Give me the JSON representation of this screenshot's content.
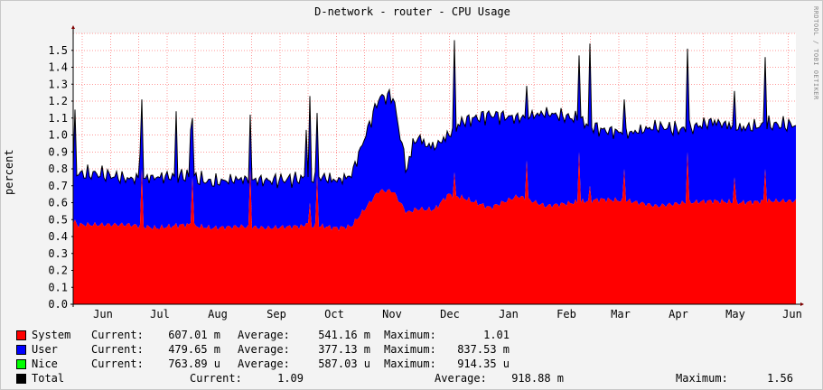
{
  "title": "D-network - router - CPU Usage",
  "watermark": "RRDTOOL / TOBI OETIKER",
  "colors": {
    "background": "#f3f3f3",
    "canvas": "#ffffff",
    "grid": "#ff9999",
    "system": "#ff0000",
    "user": "#0000ff",
    "nice": "#00ff00",
    "total": "#000000",
    "axis": "#000000",
    "arrow": "#800000"
  },
  "chart_data": {
    "type": "area",
    "stacked": true,
    "ylabel": "percent",
    "ylim": [
      0,
      1.6
    ],
    "yticks": [
      "0.0",
      "0.1",
      "0.2",
      "0.3",
      "0.4",
      "0.5",
      "0.6",
      "0.7",
      "0.8",
      "0.9",
      "1.0",
      "1.1",
      "1.2",
      "1.3",
      "1.4",
      "1.5"
    ],
    "months": [
      "Jun",
      "Jul",
      "Aug",
      "Sep",
      "Oct",
      "Nov",
      "Dec",
      "Jan",
      "Feb",
      "Mar",
      "Apr",
      "May",
      "Jun"
    ],
    "grid": true,
    "series": [
      {
        "name": "System",
        "color": "#ff0000",
        "points": [
          [
            0,
            0.47
          ],
          [
            1,
            0.47
          ],
          [
            2,
            0.47
          ],
          [
            3,
            0.45
          ],
          [
            4,
            0.47
          ],
          [
            5,
            0.45
          ],
          [
            6,
            0.46
          ],
          [
            7,
            0.45
          ],
          [
            8,
            0.46
          ],
          [
            9,
            0.46
          ],
          [
            9.5,
            0.45
          ],
          [
            10,
            0.46
          ],
          [
            11,
            0.67
          ],
          [
            11.5,
            0.67
          ],
          [
            12,
            0.54
          ],
          [
            12.3,
            0.56
          ],
          [
            13,
            0.56
          ],
          [
            13.5,
            0.65
          ],
          [
            14,
            0.63
          ],
          [
            15,
            0.57
          ],
          [
            16,
            0.64
          ],
          [
            17,
            0.58
          ],
          [
            18,
            0.6
          ],
          [
            19,
            0.62
          ],
          [
            20,
            0.61
          ],
          [
            21,
            0.58
          ],
          [
            22,
            0.6
          ],
          [
            23,
            0.61
          ],
          [
            24,
            0.6
          ],
          [
            25,
            0.61
          ],
          [
            26,
            0.61
          ]
        ]
      },
      {
        "name": "User",
        "color": "#0000ff",
        "points": [
          [
            0,
            0.3
          ],
          [
            1,
            0.3
          ],
          [
            2,
            0.27
          ],
          [
            3,
            0.3
          ],
          [
            4,
            0.29
          ],
          [
            5,
            0.27
          ],
          [
            6,
            0.28
          ],
          [
            7,
            0.28
          ],
          [
            8,
            0.28
          ],
          [
            9,
            0.29
          ],
          [
            9.5,
            0.28
          ],
          [
            10,
            0.3
          ],
          [
            11,
            0.55
          ],
          [
            11.5,
            0.56
          ],
          [
            12,
            0.25
          ],
          [
            12.3,
            0.4
          ],
          [
            13,
            0.37
          ],
          [
            13.5,
            0.35
          ],
          [
            14,
            0.45
          ],
          [
            15,
            0.55
          ],
          [
            16,
            0.46
          ],
          [
            17,
            0.55
          ],
          [
            18,
            0.5
          ],
          [
            19,
            0.41
          ],
          [
            20,
            0.4
          ],
          [
            21,
            0.47
          ],
          [
            22,
            0.43
          ],
          [
            23,
            0.47
          ],
          [
            24,
            0.44
          ],
          [
            25,
            0.45
          ],
          [
            26,
            0.45
          ]
        ]
      },
      {
        "name": "Nice",
        "color": "#00ff00",
        "points": [
          [
            0,
            0.0006
          ],
          [
            26,
            0.0008
          ]
        ]
      }
    ],
    "spikes": [
      {
        "x": 0.05,
        "total": 1.15,
        "system": 0.5
      },
      {
        "x": 2.4,
        "total": 0.89,
        "system": 0.47
      },
      {
        "x": 2.5,
        "total": 1.21,
        "system": 0.8
      },
      {
        "x": 3.7,
        "total": 1.14,
        "system": 0.48
      },
      {
        "x": 4.2,
        "total": 1.03,
        "system": 0.48
      },
      {
        "x": 4.3,
        "total": 1.1,
        "system": 0.75
      },
      {
        "x": 6.4,
        "total": 1.12,
        "system": 0.8
      },
      {
        "x": 8.4,
        "total": 1.03,
        "system": 0.48
      },
      {
        "x": 8.5,
        "total": 1.23,
        "system": 0.6
      },
      {
        "x": 8.8,
        "total": 1.13,
        "system": 0.76
      },
      {
        "x": 10.6,
        "total": 1.0,
        "system": 0.55
      },
      {
        "x": 12.2,
        "total": 0.98,
        "system": 0.48
      },
      {
        "x": 12.5,
        "total": 1.0,
        "system": 0.56
      },
      {
        "x": 13.7,
        "total": 1.56,
        "system": 0.78
      },
      {
        "x": 16.3,
        "total": 1.29,
        "system": 0.85
      },
      {
        "x": 18.2,
        "total": 1.47,
        "system": 0.9
      },
      {
        "x": 18.6,
        "total": 1.54,
        "system": 0.7
      },
      {
        "x": 19.8,
        "total": 1.21,
        "system": 0.8
      },
      {
        "x": 22.1,
        "total": 1.51,
        "system": 0.9
      },
      {
        "x": 23.8,
        "total": 1.26,
        "system": 0.75
      },
      {
        "x": 24.9,
        "total": 1.46,
        "system": 0.8
      }
    ]
  },
  "legend": {
    "labels": {
      "current": "Current:",
      "average": "Average:",
      "maximum": "Maximum:"
    },
    "rows": [
      {
        "name": "System",
        "color": "#ff0000",
        "current": "607.01 m",
        "average": "541.16 m",
        "maximum": "1.01"
      },
      {
        "name": "User",
        "color": "#0000ff",
        "current": "479.65 m",
        "average": "377.13 m",
        "maximum": "837.53 m"
      },
      {
        "name": "Nice",
        "color": "#00ff00",
        "current": "763.89 u",
        "average": "587.03 u",
        "maximum": "914.35 u"
      },
      {
        "name": "Total",
        "color": "#000000",
        "current": "1.09",
        "average": "918.88 m",
        "maximum": "1.56"
      }
    ]
  }
}
